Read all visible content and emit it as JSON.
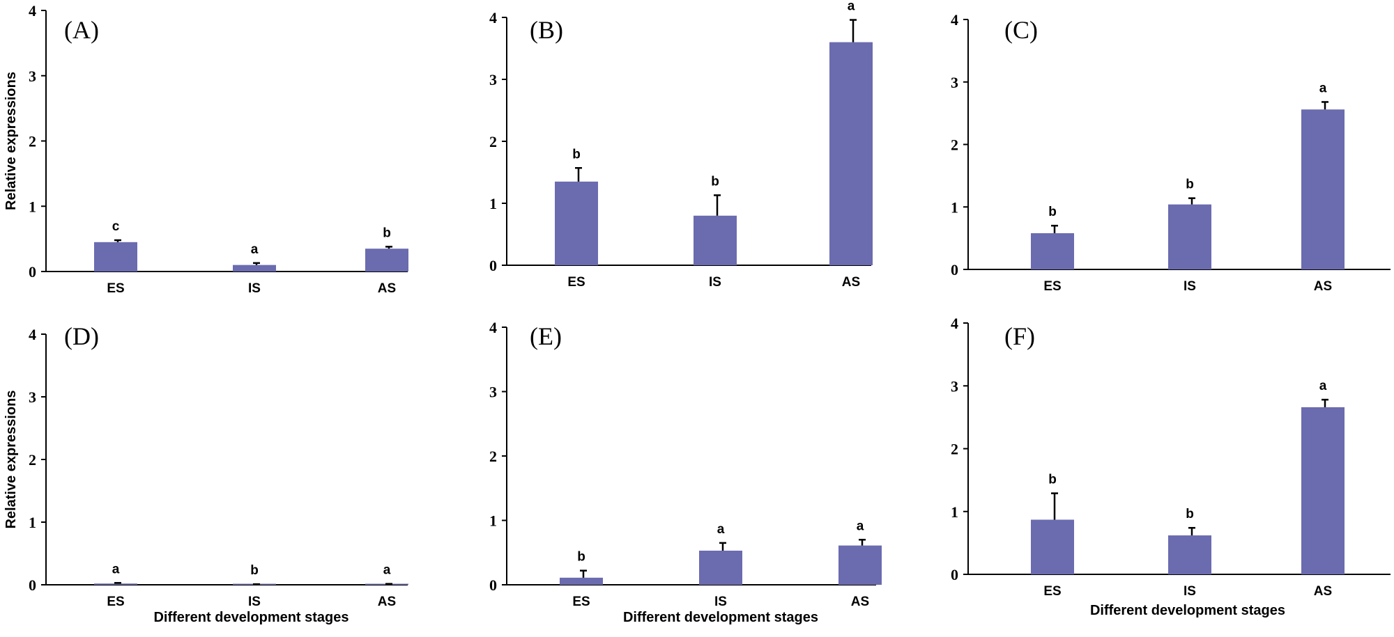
{
  "figure": {
    "bar_color": "#6b6bb0",
    "axis_color": "#000000"
  },
  "chart_data": [
    {
      "type": "bar",
      "title": "(A)",
      "categories": [
        "ES",
        "IS",
        "AS"
      ],
      "values": [
        0.45,
        0.1,
        0.35
      ],
      "errors": [
        0.03,
        0.03,
        0.03
      ],
      "significance": [
        "c",
        "a",
        "b"
      ],
      "ylabel": "Relative expressions",
      "xlabel": "",
      "ylim": [
        0,
        4
      ],
      "yticks": [
        "0",
        "1",
        "2",
        "3",
        "4"
      ]
    },
    {
      "type": "bar",
      "title": "(B)",
      "categories": [
        "ES",
        "IS",
        "AS"
      ],
      "values": [
        1.35,
        0.8,
        3.6
      ],
      "errors": [
        0.22,
        0.33,
        0.36
      ],
      "significance": [
        "b",
        "b",
        "a"
      ],
      "ylabel": "",
      "xlabel": "",
      "ylim": [
        0,
        4
      ],
      "yticks": [
        "0",
        "1",
        "2",
        "3",
        "4"
      ]
    },
    {
      "type": "bar",
      "title": "(C)",
      "categories": [
        "ES",
        "IS",
        "AS"
      ],
      "values": [
        0.58,
        1.04,
        2.56
      ],
      "errors": [
        0.12,
        0.1,
        0.12
      ],
      "significance": [
        "b",
        "b",
        "a"
      ],
      "ylabel": "",
      "xlabel": "",
      "ylim": [
        0,
        4
      ],
      "yticks": [
        "0",
        "1",
        "2",
        "3",
        "4"
      ]
    },
    {
      "type": "bar",
      "title": "(D)",
      "categories": [
        "ES",
        "IS",
        "AS"
      ],
      "values": [
        0.02,
        0.005,
        0.01
      ],
      "errors": [
        0.01,
        0.005,
        0.005
      ],
      "significance": [
        "a",
        "b",
        "a"
      ],
      "ylabel": "Relative expressions",
      "xlabel": "Different development stages",
      "ylim": [
        0,
        4
      ],
      "yticks": [
        "0",
        "1",
        "2",
        "3",
        "4"
      ]
    },
    {
      "type": "bar",
      "title": "(E)",
      "categories": [
        "ES",
        "IS",
        "AS"
      ],
      "values": [
        0.11,
        0.53,
        0.61
      ],
      "errors": [
        0.11,
        0.12,
        0.09
      ],
      "significance": [
        "b",
        "a",
        "a"
      ],
      "ylabel": "",
      "xlabel": "Different development stages",
      "ylim": [
        0,
        4
      ],
      "yticks": [
        "0",
        "1",
        "2",
        "3",
        "4"
      ]
    },
    {
      "type": "bar",
      "title": "(F)",
      "categories": [
        "ES",
        "IS",
        "AS"
      ],
      "values": [
        0.87,
        0.62,
        2.66
      ],
      "errors": [
        0.42,
        0.12,
        0.12
      ],
      "significance": [
        "b",
        "b",
        "a"
      ],
      "ylabel": "",
      "xlabel": "Different development stages",
      "ylim": [
        0,
        4
      ],
      "yticks": [
        "0",
        "1",
        "2",
        "3",
        "4"
      ]
    }
  ]
}
